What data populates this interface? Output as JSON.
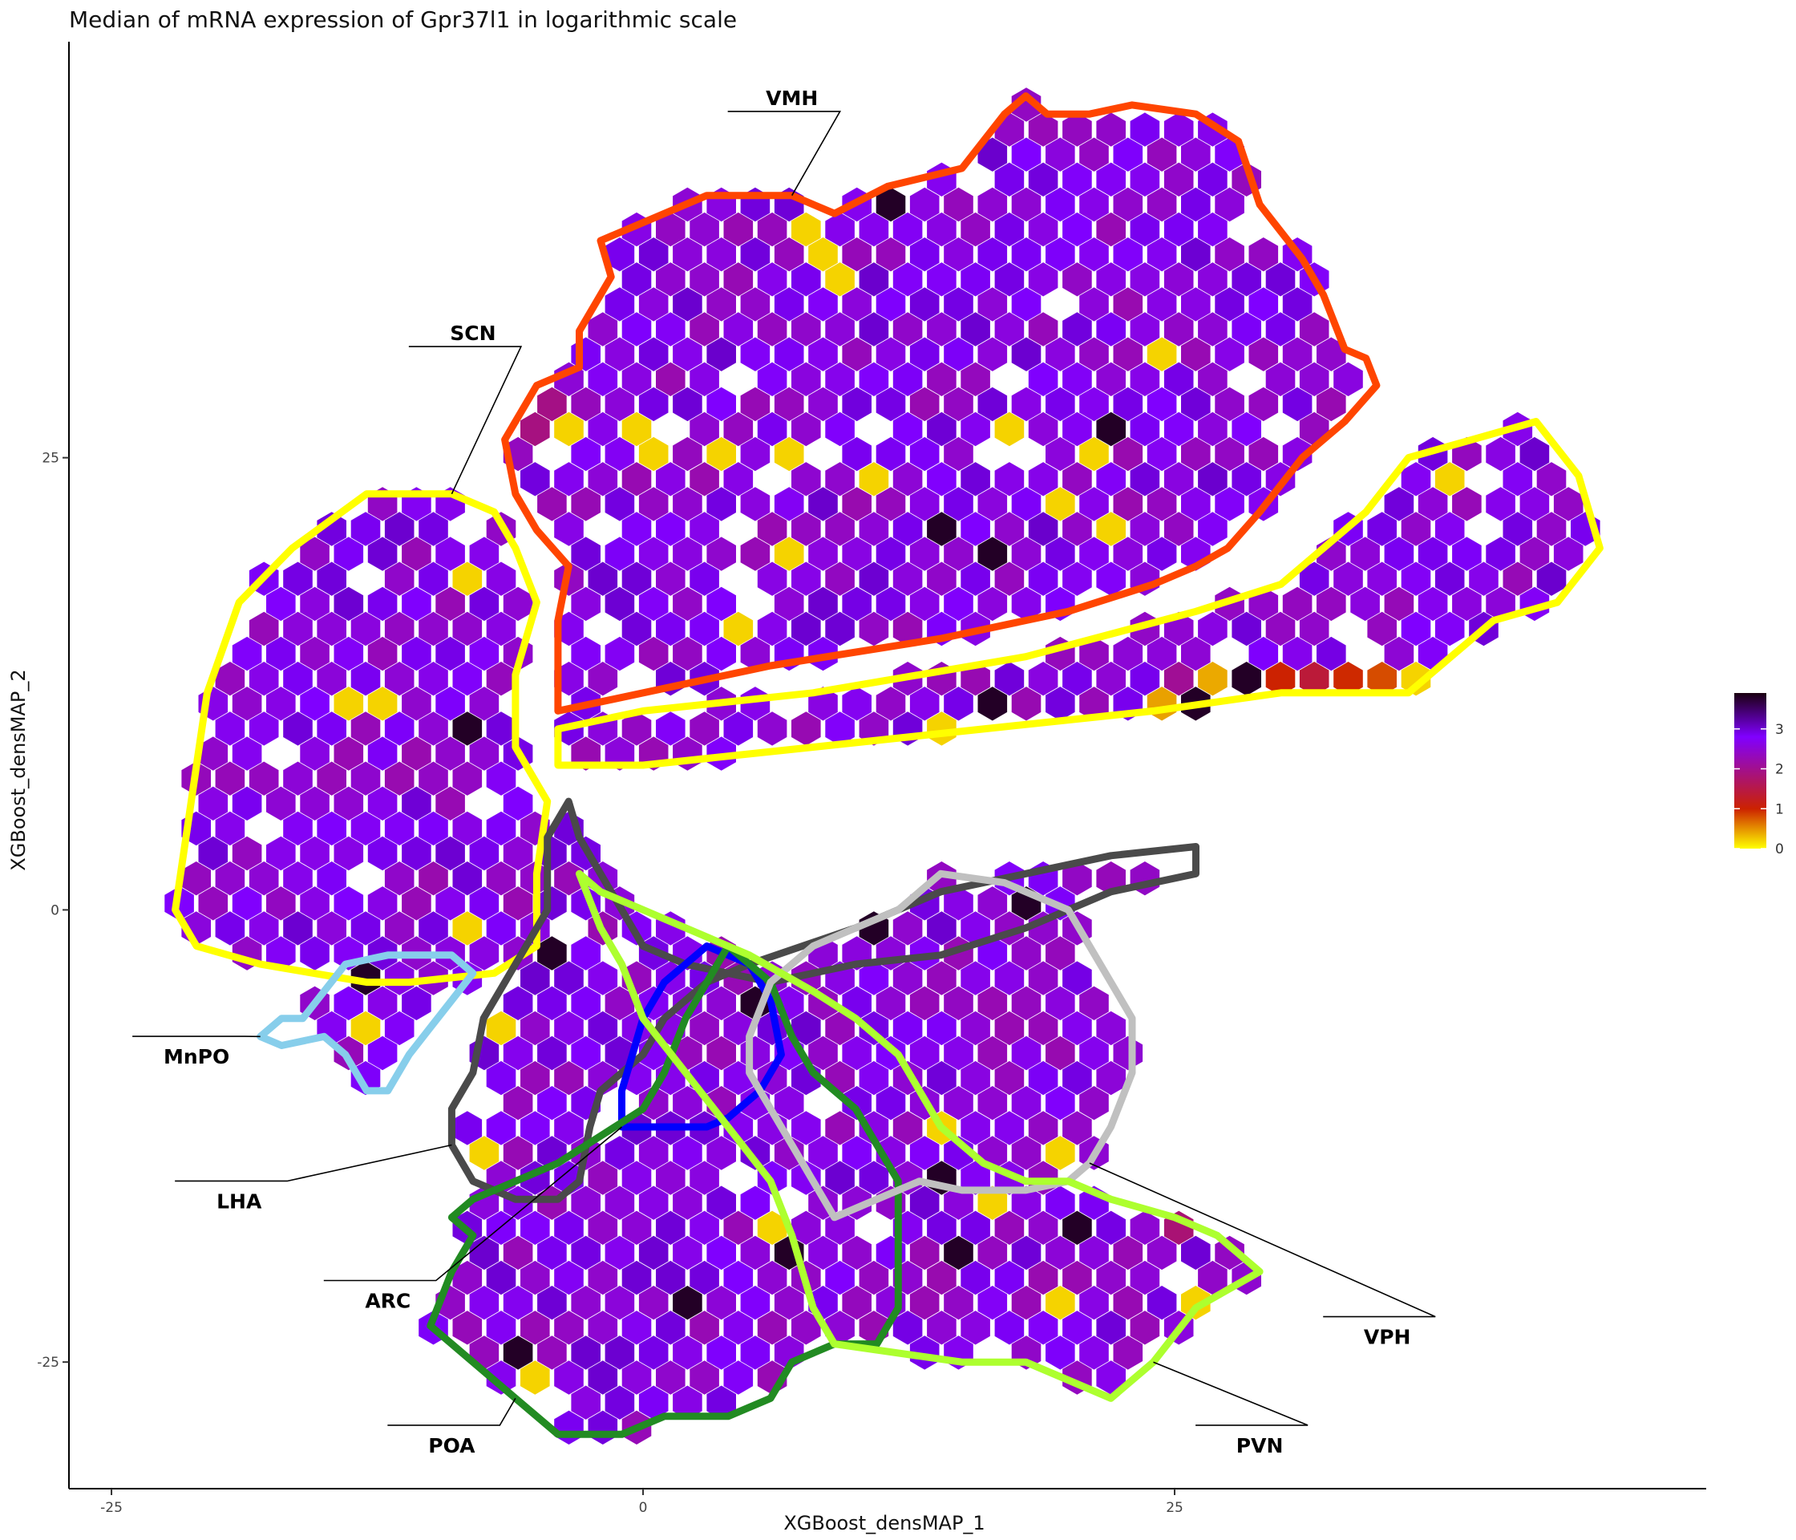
{
  "chart_data": {
    "type": "heatmap",
    "subtype": "hexbin",
    "title": "Median of mRNA expression of Gpr37l1 in logarithmic scale",
    "xlabel": "XGBoost_densMAP_1",
    "ylabel": "XGBoost_densMAP_2",
    "xlim": [
      -27,
      50
    ],
    "ylim": [
      -32,
      48
    ],
    "x_ticks": [
      -25,
      0,
      25
    ],
    "y_ticks": [
      -25,
      0,
      25
    ],
    "grid": false,
    "legend": {
      "position": "right",
      "ticks": [
        0,
        1,
        2,
        3
      ],
      "range": [
        0,
        3.9
      ],
      "colors": [
        "#ffff00",
        "#cc2200",
        "#8000ff",
        "#1a0010"
      ]
    },
    "regions": [
      {
        "name": "VMH",
        "color": "#ff4500",
        "outline": [
          [
            -1.5,
            35
          ],
          [
            -2,
            37
          ],
          [
            3,
            39.5
          ],
          [
            7,
            39.5
          ],
          [
            9,
            38.5
          ],
          [
            11.5,
            40
          ],
          [
            15,
            41
          ],
          [
            17,
            44
          ],
          [
            18,
            45
          ],
          [
            19,
            44
          ],
          [
            21,
            44
          ],
          [
            23,
            44.5
          ],
          [
            26,
            44
          ],
          [
            28,
            42.5
          ],
          [
            29,
            39
          ],
          [
            31,
            36
          ],
          [
            32,
            34
          ],
          [
            33,
            31
          ],
          [
            34,
            30.5
          ],
          [
            34.5,
            29
          ],
          [
            33,
            27
          ],
          [
            31,
            25
          ],
          [
            29,
            22
          ],
          [
            27.5,
            20
          ],
          [
            26,
            19
          ],
          [
            24,
            18
          ],
          [
            20,
            16.5
          ],
          [
            14,
            15
          ],
          [
            6,
            13.5
          ],
          [
            -4,
            11
          ],
          [
            -4,
            16
          ],
          [
            -3.5,
            19
          ],
          [
            -5,
            21
          ],
          [
            -6,
            23
          ],
          [
            -6.5,
            26
          ],
          [
            -5,
            29
          ],
          [
            -3,
            30
          ],
          [
            -3,
            32
          ]
        ]
      },
      {
        "name": "SCN",
        "color": "#ffff00",
        "outline": [
          [
            -7,
            22
          ],
          [
            -9,
            23
          ],
          [
            -13,
            23
          ],
          [
            -16.5,
            20
          ],
          [
            -19,
            17
          ],
          [
            -20.5,
            12
          ],
          [
            -21,
            8
          ],
          [
            -21.5,
            4
          ],
          [
            -22,
            0
          ],
          [
            -21,
            -2
          ],
          [
            -18,
            -3
          ],
          [
            -13,
            -4
          ],
          [
            -11,
            -4
          ],
          [
            -7,
            -3.5
          ],
          [
            -5,
            -2
          ],
          [
            -5,
            2
          ],
          [
            -4.5,
            6
          ],
          [
            -6,
            9
          ],
          [
            -6,
            13
          ],
          [
            -5,
            17
          ],
          [
            -6,
            20
          ]
        ]
      },
      {
        "name": "SCN",
        "color": "#ffff00",
        "outline": [
          [
            -4,
            8
          ],
          [
            -4,
            10
          ],
          [
            0,
            11
          ],
          [
            8,
            12
          ],
          [
            18,
            14
          ],
          [
            26,
            16.5
          ],
          [
            30,
            18
          ],
          [
            32,
            20
          ],
          [
            34,
            22
          ],
          [
            36,
            25
          ],
          [
            39,
            26
          ],
          [
            42,
            27
          ],
          [
            44,
            24
          ],
          [
            45,
            20
          ],
          [
            43,
            17
          ],
          [
            40,
            16
          ],
          [
            38,
            14
          ],
          [
            36,
            12
          ],
          [
            30,
            12
          ],
          [
            24,
            11
          ],
          [
            16,
            10
          ],
          [
            8,
            9
          ],
          [
            0,
            8
          ]
        ]
      },
      {
        "name": "LHA",
        "color": "#4a4a4a",
        "outline": [
          [
            -3.5,
            6
          ],
          [
            -4.5,
            4
          ],
          [
            -4.5,
            0
          ],
          [
            -6,
            -3
          ],
          [
            -7.5,
            -6
          ],
          [
            -8,
            -9
          ],
          [
            -9,
            -11
          ],
          [
            -9,
            -13
          ],
          [
            -8,
            -15
          ],
          [
            -6,
            -16
          ],
          [
            -4,
            -16
          ],
          [
            -3,
            -15
          ],
          [
            -2.5,
            -12
          ],
          [
            -2,
            -10
          ],
          [
            -1,
            -9
          ],
          [
            0,
            -8
          ],
          [
            1,
            -6
          ],
          [
            3,
            -4
          ],
          [
            5,
            -3
          ],
          [
            10,
            -1
          ],
          [
            14,
            1
          ],
          [
            18,
            2
          ],
          [
            22,
            3
          ],
          [
            26,
            3.5
          ],
          [
            26,
            2
          ],
          [
            22,
            1
          ],
          [
            18,
            -1
          ],
          [
            14,
            -2.5
          ],
          [
            10,
            -3
          ],
          [
            6,
            -4
          ],
          [
            2,
            -3
          ],
          [
            0,
            -2
          ],
          [
            -1,
            0
          ],
          [
            -2,
            2
          ],
          [
            -3,
            4
          ]
        ]
      },
      {
        "name": "MnPO",
        "color": "#87ceeb",
        "outline": [
          [
            -14,
            -3
          ],
          [
            -12,
            -2.5
          ],
          [
            -9,
            -2.5
          ],
          [
            -8,
            -3.5
          ],
          [
            -9,
            -5
          ],
          [
            -10,
            -6.5
          ],
          [
            -11,
            -8
          ],
          [
            -12,
            -10
          ],
          [
            -13,
            -10
          ],
          [
            -14,
            -8
          ],
          [
            -15,
            -7
          ],
          [
            -17,
            -7.5
          ],
          [
            -18,
            -7
          ],
          [
            -17,
            -6
          ],
          [
            -16,
            -6
          ]
        ]
      },
      {
        "name": "ARC",
        "color": "#0000ff",
        "outline": [
          [
            3,
            -2
          ],
          [
            5,
            -3
          ],
          [
            6,
            -5
          ],
          [
            6.5,
            -8
          ],
          [
            5.5,
            -10
          ],
          [
            4,
            -11.5
          ],
          [
            3,
            -12
          ],
          [
            1,
            -12
          ],
          [
            -1,
            -12
          ],
          [
            -1,
            -10
          ],
          [
            -0.5,
            -8
          ],
          [
            0,
            -6
          ],
          [
            1,
            -4
          ]
        ]
      },
      {
        "name": "POA",
        "color": "#228b22",
        "outline": [
          [
            4,
            -2
          ],
          [
            6,
            -4
          ],
          [
            7,
            -7
          ],
          [
            8,
            -9
          ],
          [
            9,
            -10
          ],
          [
            10,
            -11
          ],
          [
            11,
            -13
          ],
          [
            12,
            -15
          ],
          [
            12,
            -18
          ],
          [
            12,
            -22
          ],
          [
            11,
            -24
          ],
          [
            9,
            -24
          ],
          [
            7,
            -25
          ],
          [
            6,
            -27
          ],
          [
            4,
            -28
          ],
          [
            1,
            -28
          ],
          [
            -1,
            -29
          ],
          [
            -4,
            -29
          ],
          [
            -6,
            -27
          ],
          [
            -8,
            -25
          ],
          [
            -9,
            -24
          ],
          [
            -10,
            -23
          ],
          [
            -9,
            -20
          ],
          [
            -8,
            -18
          ],
          [
            -9,
            -17
          ],
          [
            -8,
            -16
          ],
          [
            -6,
            -15
          ],
          [
            -4,
            -14
          ],
          [
            -2,
            -12.5
          ],
          [
            0,
            -11
          ],
          [
            1,
            -9
          ],
          [
            2,
            -6
          ],
          [
            3,
            -4
          ]
        ]
      },
      {
        "name": "VPH",
        "color": "#c0c0c0",
        "outline": [
          [
            14,
            2
          ],
          [
            17,
            1.5
          ],
          [
            20,
            0
          ],
          [
            21,
            -2
          ],
          [
            22,
            -4
          ],
          [
            23,
            -6
          ],
          [
            23,
            -9
          ],
          [
            22,
            -12
          ],
          [
            21,
            -14
          ],
          [
            20,
            -15
          ],
          [
            18,
            -15.5
          ],
          [
            15,
            -15.5
          ],
          [
            13,
            -15
          ],
          [
            11,
            -16
          ],
          [
            9,
            -17
          ],
          [
            8,
            -15
          ],
          [
            7,
            -13
          ],
          [
            6,
            -11
          ],
          [
            5,
            -9
          ],
          [
            5,
            -7
          ],
          [
            6,
            -4
          ],
          [
            8,
            -2
          ],
          [
            10,
            -1
          ],
          [
            12,
            0
          ]
        ]
      },
      {
        "name": "PVN",
        "color": "#adff2f",
        "outline": [
          [
            -3,
            2
          ],
          [
            -2,
            1
          ],
          [
            2,
            -1
          ],
          [
            5,
            -2.5
          ],
          [
            8,
            -4.5
          ],
          [
            10,
            -6
          ],
          [
            12,
            -8
          ],
          [
            13,
            -10
          ],
          [
            14,
            -12
          ],
          [
            16,
            -14
          ],
          [
            18,
            -15
          ],
          [
            20,
            -15
          ],
          [
            22,
            -16
          ],
          [
            25,
            -17
          ],
          [
            27,
            -18
          ],
          [
            28,
            -19
          ],
          [
            29,
            -20
          ],
          [
            26,
            -22
          ],
          [
            24,
            -25
          ],
          [
            22,
            -27
          ],
          [
            20,
            -26
          ],
          [
            18,
            -25
          ],
          [
            15,
            -25
          ],
          [
            12,
            -24.5
          ],
          [
            9,
            -24
          ],
          [
            8,
            -22
          ],
          [
            7,
            -18
          ],
          [
            6,
            -15
          ],
          [
            4,
            -12
          ],
          [
            2,
            -9
          ],
          [
            0,
            -6
          ],
          [
            -1,
            -3
          ],
          [
            -2,
            -1
          ]
        ]
      }
    ],
    "labels": [
      {
        "text": "VMH",
        "x": 7,
        "y": 44.5
      },
      {
        "text": "SCN",
        "x": -8,
        "y": 31.5
      },
      {
        "text": "MnPO",
        "x": -21,
        "y": -8.5
      },
      {
        "text": "LHA",
        "x": -19,
        "y": -16.5
      },
      {
        "text": "ARC",
        "x": -12,
        "y": -22
      },
      {
        "text": "POA",
        "x": -9,
        "y": -30
      },
      {
        "text": "VPH",
        "x": 35,
        "y": -24
      },
      {
        "text": "PVN",
        "x": 29,
        "y": -30
      }
    ]
  }
}
